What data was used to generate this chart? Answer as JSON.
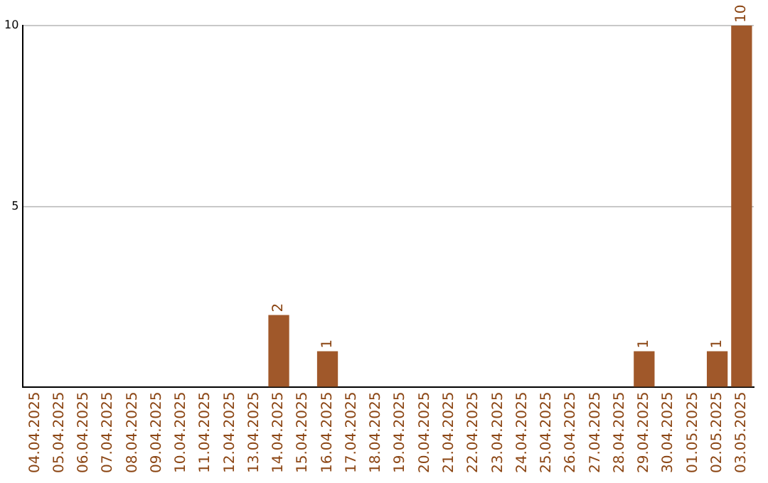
{
  "chart_data": {
    "type": "bar",
    "categories": [
      "04.04.2025",
      "05.04.2025",
      "06.04.2025",
      "07.04.2025",
      "08.04.2025",
      "09.04.2025",
      "10.04.2025",
      "11.04.2025",
      "12.04.2025",
      "13.04.2025",
      "14.04.2025",
      "15.04.2025",
      "16.04.2025",
      "17.04.2025",
      "18.04.2025",
      "19.04.2025",
      "20.04.2025",
      "21.04.2025",
      "22.04.2025",
      "23.04.2025",
      "24.04.2025",
      "25.04.2025",
      "26.04.2025",
      "27.04.2025",
      "28.04.2025",
      "29.04.2025",
      "30.04.2025",
      "01.05.2025",
      "02.05.2025",
      "03.05.2025"
    ],
    "values": [
      0,
      0,
      0,
      0,
      0,
      0,
      0,
      0,
      0,
      0,
      2,
      0,
      1,
      0,
      0,
      0,
      0,
      0,
      0,
      0,
      0,
      0,
      0,
      0,
      0,
      1,
      0,
      0,
      1,
      10
    ],
    "value_labels": [
      null,
      null,
      null,
      null,
      null,
      null,
      null,
      null,
      null,
      null,
      "2",
      null,
      "1",
      null,
      null,
      null,
      null,
      null,
      null,
      null,
      null,
      null,
      null,
      null,
      null,
      "1",
      null,
      null,
      "1",
      "10"
    ],
    "color": "#a0582a",
    "ylim": [
      0,
      10
    ],
    "yticks": [
      {
        "value": 0,
        "label": null
      },
      5,
      10
    ],
    "grid": "y",
    "legend": false
  }
}
